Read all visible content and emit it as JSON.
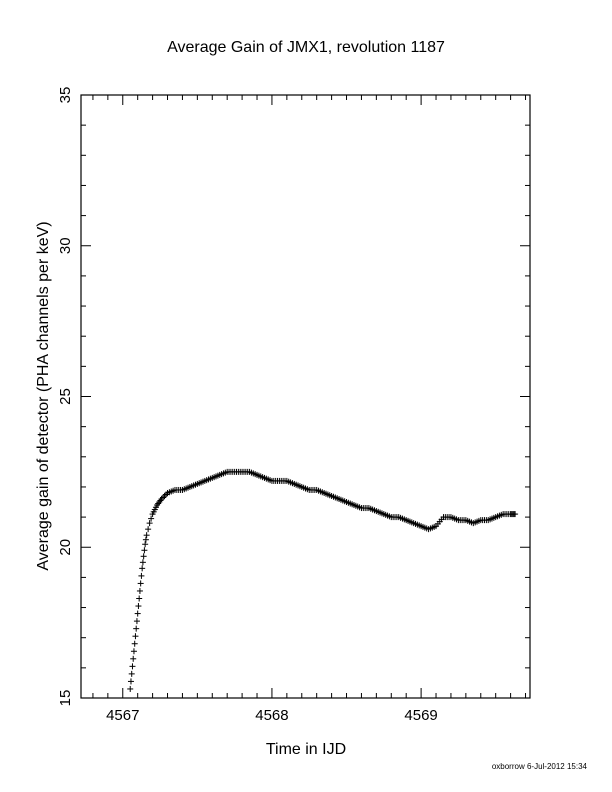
{
  "chart_data": {
    "type": "scatter",
    "marker": "plus",
    "title": "Average Gain of JMX1, revolution 1187",
    "xlabel": "Time in IJD",
    "ylabel": "Average gain of detector (PHA channels per keV)",
    "xlim": [
      4566.72,
      4569.73
    ],
    "ylim": [
      15,
      35
    ],
    "x_ticks": [
      {
        "value": 4567,
        "label": "4567"
      },
      {
        "value": 4568,
        "label": "4568"
      },
      {
        "value": 4569,
        "label": "4569"
      }
    ],
    "y_ticks": [
      {
        "value": 15,
        "label": "15"
      },
      {
        "value": 20,
        "label": "20"
      },
      {
        "value": 25,
        "label": "25"
      },
      {
        "value": 30,
        "label": "30"
      },
      {
        "value": 35,
        "label": "35"
      }
    ],
    "grid": false,
    "series": [
      {
        "color": "#000000",
        "x": [
          4567.05,
          4567.06,
          4567.07,
          4567.08,
          4567.09,
          4567.1,
          4567.11,
          4567.12,
          4567.13,
          4567.14,
          4567.15,
          4567.16,
          4567.18,
          4567.2,
          4567.23,
          4567.26,
          4567.3,
          4567.35,
          4567.4,
          4567.45,
          4567.5,
          4567.55,
          4567.6,
          4567.65,
          4567.7,
          4567.75,
          4567.8,
          4567.85,
          4567.9,
          4567.95,
          4568.0,
          4568.05,
          4568.1,
          4568.15,
          4568.2,
          4568.25,
          4568.3,
          4568.35,
          4568.4,
          4568.45,
          4568.5,
          4568.55,
          4568.6,
          4568.65,
          4568.7,
          4568.75,
          4568.8,
          4568.85,
          4568.9,
          4568.95,
          4569.0,
          4569.05,
          4569.1,
          4569.15,
          4569.2,
          4569.25,
          4569.3,
          4569.35,
          4569.4,
          4569.45,
          4569.5,
          4569.55,
          4569.6,
          4569.63
        ],
        "y": [
          15.3,
          15.8,
          16.3,
          16.8,
          17.3,
          17.8,
          18.3,
          18.8,
          19.3,
          19.7,
          20.1,
          20.4,
          20.8,
          21.1,
          21.4,
          21.6,
          21.8,
          21.9,
          21.9,
          22.0,
          22.1,
          22.2,
          22.3,
          22.4,
          22.5,
          22.5,
          22.5,
          22.5,
          22.4,
          22.3,
          22.2,
          22.2,
          22.2,
          22.1,
          22.0,
          21.9,
          21.9,
          21.8,
          21.7,
          21.6,
          21.5,
          21.4,
          21.3,
          21.3,
          21.2,
          21.1,
          21.0,
          21.0,
          20.9,
          20.8,
          20.7,
          20.6,
          20.7,
          21.0,
          21.0,
          20.9,
          20.9,
          20.8,
          20.9,
          20.9,
          21.0,
          21.1,
          21.1,
          21.1
        ]
      }
    ]
  },
  "footer": {
    "credit": "oxborrow  6-Jul-2012 15:34"
  }
}
